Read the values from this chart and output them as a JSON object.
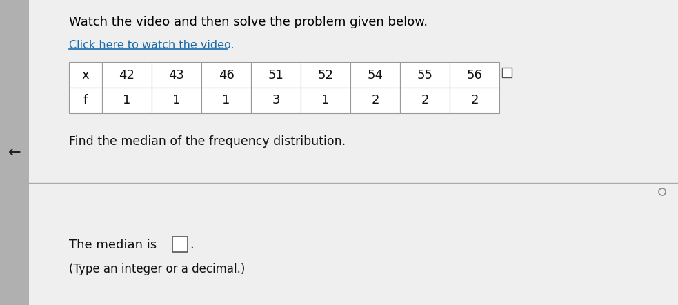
{
  "title": "Watch the video and then solve the problem given below.",
  "link_text": "Click here to watch the video.",
  "table_x_values": [
    "x",
    "42",
    "43",
    "46",
    "51",
    "52",
    "54",
    "55",
    "56"
  ],
  "table_f_values": [
    "f",
    "1",
    "1",
    "1",
    "3",
    "1",
    "2",
    "2",
    "2"
  ],
  "instruction": "Find the median of the frequency distribution.",
  "answer_text": "The median is",
  "answer_note": "(Type an integer or a decimal.)",
  "bg_color": "#c8c8c8",
  "panel_color": "#efefef",
  "table_bg": "#ffffff",
  "title_color": "#000000",
  "link_color": "#1a6aab",
  "text_color": "#111111",
  "separator_color": "#aaaaaa",
  "left_panel_color": "#b0b0b0"
}
